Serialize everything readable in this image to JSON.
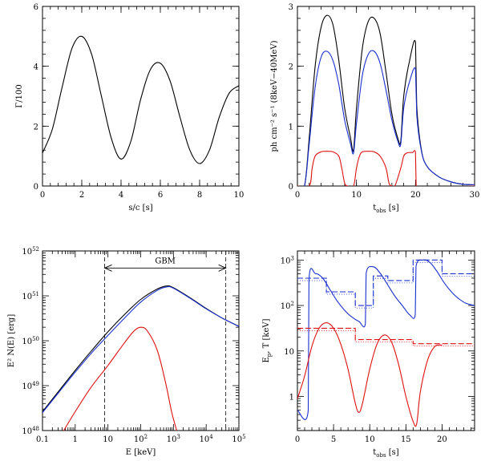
{
  "colors": {
    "black": "#000000",
    "blue": "#1a2fd0",
    "red": "#e01010"
  },
  "chart_data": [
    {
      "type": "line",
      "id": "p1",
      "xlabel": "s/c [s]",
      "ylabel": "Γ/100",
      "xlim": [
        0,
        10
      ],
      "ylim": [
        0,
        6
      ],
      "xticks": [
        0,
        2,
        4,
        6,
        8,
        10
      ],
      "xtick_labels": [
        "0",
        "2",
        "4",
        "6",
        "8",
        "10"
      ],
      "yticks": [
        0,
        2,
        4,
        6
      ],
      "ytick_labels": [
        "0",
        "2",
        "4",
        "6"
      ],
      "series": [
        {
          "name": "Gamma",
          "color": "black",
          "x": [
            0,
            0.5,
            1,
            1.5,
            2,
            2.5,
            3,
            3.5,
            4,
            4.5,
            5,
            5.5,
            6,
            6.5,
            7,
            7.5,
            8,
            8.5,
            9,
            9.5,
            10
          ],
          "y": [
            1.1,
            1.9,
            3.3,
            4.6,
            5.0,
            4.4,
            3.0,
            1.6,
            0.9,
            1.5,
            2.9,
            3.9,
            4.1,
            3.5,
            2.3,
            1.2,
            0.75,
            1.2,
            2.3,
            3.1,
            3.35
          ]
        }
      ]
    },
    {
      "type": "line",
      "id": "p2",
      "xlabel": "t_obs [s]",
      "xlabel_main": "t",
      "xlabel_sub": "obs",
      "xlabel_tail": " [s]",
      "ylabel": "ph  cm⁻² s⁻¹ (8keV−40MeV)",
      "xlim": [
        0,
        30
      ],
      "ylim": [
        0,
        3
      ],
      "xticks": [
        0,
        10,
        20,
        30
      ],
      "xtick_labels": [
        "0",
        "10",
        "20",
        "30"
      ],
      "yticks": [
        0,
        1,
        2,
        3
      ],
      "ytick_labels": [
        "0",
        "1",
        "2",
        "3"
      ],
      "series": [
        {
          "name": "total",
          "color": "black",
          "x": [
            0,
            1.2,
            2,
            3,
            4,
            5,
            6,
            7,
            8,
            9,
            9.5,
            10,
            11,
            12,
            13,
            14,
            15,
            16,
            17,
            17.5,
            18,
            19,
            20,
            20.2,
            21,
            22,
            24,
            26,
            28,
            30
          ],
          "y": [
            0,
            0,
            0.8,
            2.0,
            2.65,
            2.85,
            2.7,
            2.1,
            1.3,
            0.8,
            0.6,
            1.3,
            2.3,
            2.75,
            2.8,
            2.55,
            1.9,
            1.2,
            0.8,
            0.75,
            1.5,
            2.1,
            2.4,
            1.35,
            0.6,
            0.32,
            0.15,
            0.07,
            0.03,
            0.02
          ]
        },
        {
          "name": "blue",
          "color": "blue",
          "x": [
            0,
            1.2,
            2,
            3,
            4,
            5,
            6,
            7,
            8,
            9,
            9.5,
            10,
            11,
            12,
            13,
            14,
            15,
            16,
            17,
            17.5,
            18,
            19,
            20,
            20.2,
            21,
            22,
            24,
            26,
            28,
            30
          ],
          "y": [
            0,
            0,
            0.7,
            1.65,
            2.15,
            2.25,
            2.1,
            1.7,
            1.1,
            0.7,
            0.55,
            1.05,
            1.85,
            2.2,
            2.25,
            2.05,
            1.6,
            1.1,
            0.75,
            0.7,
            1.3,
            1.75,
            1.95,
            1.2,
            0.58,
            0.32,
            0.15,
            0.07,
            0.03,
            0.02
          ]
        },
        {
          "name": "red",
          "color": "red",
          "x": [
            0,
            2,
            2.5,
            3,
            4,
            5,
            6,
            7,
            7.5,
            8,
            8.5,
            9.5,
            10,
            10.5,
            11,
            12,
            13,
            14,
            15,
            15.5,
            16,
            16.5,
            17.5,
            18,
            18.5,
            19,
            19.5,
            20,
            20.1,
            30
          ],
          "y": [
            0,
            0,
            0.3,
            0.5,
            0.57,
            0.58,
            0.57,
            0.5,
            0.3,
            0.05,
            0,
            0,
            0.3,
            0.5,
            0.57,
            0.58,
            0.57,
            0.5,
            0.3,
            0.05,
            0,
            0,
            0.3,
            0.5,
            0.55,
            0.56,
            0.56,
            0.55,
            0,
            0
          ]
        }
      ]
    },
    {
      "type": "line",
      "id": "p3",
      "log_x": true,
      "log_y": true,
      "xlabel": "E [keV]",
      "ylabel": "E² N(E) [erg]",
      "xlim_log10": [
        -1,
        5
      ],
      "ylim_log10": [
        48,
        52
      ],
      "xtick_values": [
        -1,
        0,
        1,
        2,
        3,
        4,
        5
      ],
      "xtick_labels": [
        {
          "base": "0.1",
          "exp": ""
        },
        {
          "base": "1",
          "exp": ""
        },
        {
          "base": "10",
          "exp": ""
        },
        {
          "base": "10",
          "exp": "2"
        },
        {
          "base": "10",
          "exp": "3"
        },
        {
          "base": "10",
          "exp": "4"
        },
        {
          "base": "10",
          "exp": "5"
        }
      ],
      "ytick_values": [
        48,
        49,
        50,
        51,
        52
      ],
      "ytick_labels": [
        {
          "base": "10",
          "exp": "48"
        },
        {
          "base": "10",
          "exp": "49"
        },
        {
          "base": "10",
          "exp": "50"
        },
        {
          "base": "10",
          "exp": "51"
        },
        {
          "base": "10",
          "exp": "52"
        }
      ],
      "annotation": {
        "text": "GBM",
        "from": 0.9,
        "to": 4.6,
        "y": 51.62
      },
      "vlines": [
        0.9,
        4.6
      ],
      "series": [
        {
          "name": "total",
          "color": "black",
          "x": [
            -1,
            -0.5,
            0,
            0.5,
            1,
            1.5,
            2,
            2.5,
            2.8,
            3,
            3.5,
            4,
            4.5,
            5
          ],
          "y": [
            48.42,
            48.88,
            49.34,
            49.78,
            50.2,
            50.58,
            50.92,
            51.15,
            51.22,
            51.18,
            50.96,
            50.72,
            50.5,
            50.32
          ]
        },
        {
          "name": "blue",
          "color": "blue",
          "x": [
            -1,
            -0.5,
            0,
            0.5,
            1,
            1.5,
            2,
            2.5,
            2.8,
            3,
            3.5,
            4,
            4.5,
            5
          ],
          "y": [
            48.4,
            48.85,
            49.3,
            49.73,
            50.12,
            50.5,
            50.86,
            51.12,
            51.2,
            51.17,
            50.95,
            50.71,
            50.5,
            50.32
          ]
        },
        {
          "name": "red",
          "color": "red",
          "x": [
            -0.35,
            0,
            0.5,
            1,
            1.5,
            1.8,
            2,
            2.2,
            2.5,
            2.75,
            2.95,
            3.1
          ],
          "y": [
            48,
            48.42,
            48.98,
            49.45,
            49.95,
            50.22,
            50.3,
            50.22,
            49.8,
            49.1,
            48.4,
            48
          ]
        }
      ]
    },
    {
      "type": "line",
      "id": "p4",
      "log_y": true,
      "xlabel": "t_obs [s]",
      "xlabel_main": "t",
      "xlabel_sub": "obs",
      "xlabel_tail": " [s]",
      "ylabel": "E_p, T [keV]",
      "ylabel_main": "E",
      "ylabel_sub": "p",
      "ylabel_tail": ", T [keV]",
      "xlim": [
        0,
        24.5
      ],
      "ylim_log10": [
        -0.75,
        3.2
      ],
      "xticks": [
        0,
        5,
        10,
        15,
        20
      ],
      "xtick_labels": [
        "0",
        "5",
        "10",
        "15",
        "20"
      ],
      "ytick_values": [
        0,
        1,
        2,
        3
      ],
      "ytick_labels": [
        {
          "base": "1",
          "exp": ""
        },
        {
          "base": "10",
          "exp": ""
        },
        {
          "base": "10",
          "exp": "2"
        },
        {
          "base": "10",
          "exp": "3"
        }
      ],
      "series": [
        {
          "name": "Ep solid",
          "color": "blue",
          "style": "solid",
          "x": [
            0,
            1.5,
            1.6,
            2.5,
            3.5,
            4.5,
            5.5,
            6.5,
            7.5,
            8.5,
            9.4,
            9.5,
            10.5,
            11.5,
            12.5,
            13.5,
            14.5,
            15.5,
            16.3,
            16.4,
            17.3,
            18.3,
            19.3,
            20.3,
            21.3,
            22.3,
            23.3,
            24.5
          ],
          "y": [
            -0.3,
            -0.3,
            2.55,
            2.7,
            2.6,
            2.35,
            2.1,
            1.9,
            1.75,
            1.65,
            1.6,
            2.7,
            2.85,
            2.7,
            2.45,
            2.2,
            2.0,
            1.8,
            1.8,
            2.85,
            3.0,
            2.95,
            2.75,
            2.5,
            2.3,
            2.15,
            2.05,
            2.0
          ]
        },
        {
          "name": "Ep dashed",
          "color": "blue",
          "style": "dashed",
          "x": [
            0,
            1.5,
            1.5,
            4,
            4,
            8,
            8,
            10.5,
            10.5,
            12.5,
            12.5,
            16,
            16,
            20,
            20,
            24.5
          ],
          "y": [
            2.6,
            2.6,
            2.6,
            2.6,
            2.3,
            2.3,
            2.0,
            2.0,
            2.65,
            2.65,
            2.55,
            2.55,
            3.0,
            3.0,
            2.7,
            2.7
          ]
        },
        {
          "name": "T solid",
          "color": "red",
          "style": "solid",
          "x": [
            0,
            1,
            2,
            3,
            4,
            5,
            6,
            7,
            8,
            8.5,
            9,
            10,
            11,
            12,
            13,
            14,
            15,
            16,
            16.5,
            17,
            18,
            19,
            20
          ],
          "y": [
            -0.05,
            0.45,
            1.1,
            1.5,
            1.62,
            1.5,
            1.15,
            0.6,
            -0.15,
            -0.35,
            -0.15,
            0.6,
            1.15,
            1.35,
            1.2,
            0.7,
            0.0,
            -0.55,
            -0.6,
            0.1,
            0.8,
            1.1,
            1.13
          ]
        },
        {
          "name": "T dashed",
          "color": "red",
          "style": "dashed",
          "x": [
            0,
            8,
            8,
            16,
            16,
            24.5
          ],
          "y": [
            1.5,
            1.5,
            1.25,
            1.25,
            1.16,
            1.16
          ]
        }
      ]
    }
  ]
}
